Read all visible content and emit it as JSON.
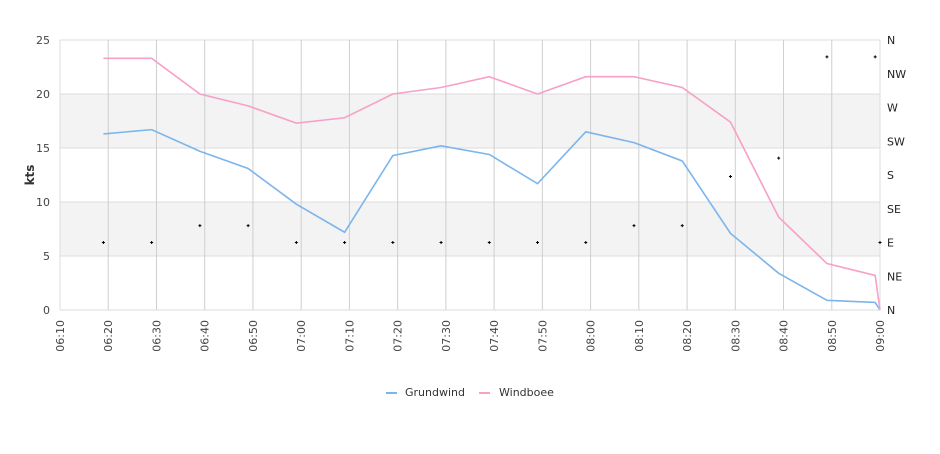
{
  "chart_data": {
    "type": "line",
    "title": "",
    "xlabel": "",
    "ylabel": "kts",
    "ylim": [
      0,
      25
    ],
    "yticks": [
      "0",
      "5",
      "10",
      "15",
      "20",
      "25"
    ],
    "y2lim": [
      0,
      360
    ],
    "y2ticks": [
      "N",
      "NE",
      "E",
      "SE",
      "S",
      "SW",
      "W",
      "NW",
      "N"
    ],
    "xlim_minutes": [
      370,
      540
    ],
    "xticks": [
      "06:10",
      "06:20",
      "06:30",
      "06:40",
      "06:50",
      "07:00",
      "07:10",
      "07:20",
      "07:30",
      "07:40",
      "07:50",
      "08:00",
      "08:10",
      "08:20",
      "08:30",
      "08:40",
      "08:50",
      "09:00"
    ],
    "grid": true,
    "legend_placement": "bottom-center",
    "x_minutes": [
      379,
      389,
      399,
      409,
      419,
      429,
      439,
      449,
      459,
      469,
      479,
      489,
      499,
      509,
      519,
      529,
      539,
      540
    ],
    "series": [
      {
        "name": "Grundwind",
        "color": "#7cb5ec",
        "values": [
          16.3,
          16.7,
          14.7,
          13.1,
          9.8,
          7.2,
          14.3,
          15.2,
          14.4,
          11.7,
          16.5,
          15.5,
          13.8,
          7.1,
          3.4,
          0.9,
          0.7,
          0
        ]
      },
      {
        "name": "Windboee",
        "color": "#f7a0c8",
        "values": [
          23.3,
          23.3,
          20.0,
          18.9,
          17.3,
          17.8,
          20.0,
          20.6,
          21.6,
          20.0,
          21.6,
          21.6,
          20.6,
          17.4,
          8.6,
          4.3,
          3.2,
          0
        ]
      }
    ],
    "direction_degrees": [
      90,
      90,
      112.5,
      112.5,
      90,
      90,
      90,
      90,
      90,
      90,
      90,
      112.5,
      112.5,
      178,
      202.5,
      337.5,
      337.5,
      90
    ]
  }
}
